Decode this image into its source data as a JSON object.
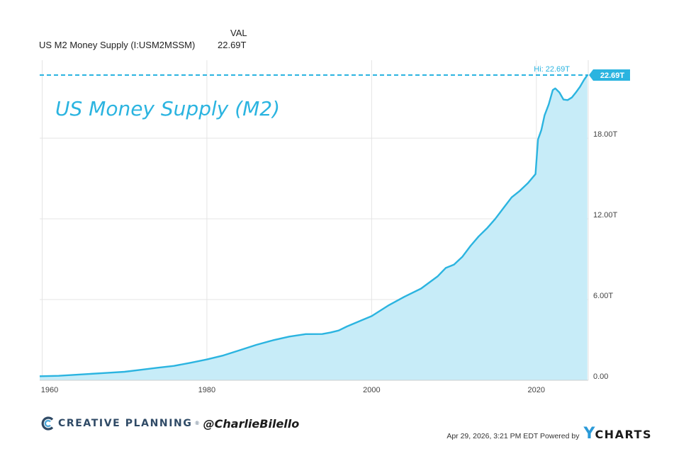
{
  "header": {
    "value_column_label": "VAL",
    "series_label": "US M2 Money Supply (I:USM2MSSM)",
    "series_value": "22.69T"
  },
  "chart_data": {
    "type": "area",
    "title": "US Money Supply (M2)",
    "xlabel": "",
    "ylabel": "",
    "x_ticks": [
      "1960",
      "1980",
      "2000",
      "2020"
    ],
    "y_ticks": [
      "0.00",
      "6.00T",
      "12.00T",
      "18.00T"
    ],
    "xlim": [
      1959.7,
      2026.3
    ],
    "ylim": [
      0,
      22.69
    ],
    "high_label": "Hi: 22.69T",
    "last_value_label": "22.69T",
    "grid": true,
    "series": [
      {
        "x": [
          1959.5,
          1962,
          1965,
          1968,
          1970,
          1972,
          1974,
          1976,
          1978,
          1980,
          1982,
          1984,
          1986,
          1988,
          1990,
          1992,
          1994,
          1995,
          1996,
          1997,
          1998,
          2000,
          2002,
          2004,
          2006,
          2008,
          2009,
          2010,
          2011,
          2012,
          2013,
          2014,
          2015,
          2016,
          2017,
          2018,
          2019,
          2019.9,
          2020.2,
          2020.6,
          2021,
          2021.5,
          2022,
          2022.3,
          2022.8,
          2023.3,
          2023.8,
          2024.3,
          2024.8,
          2025.3,
          2025.8,
          2026.2
        ],
        "values": [
          0.3,
          0.33,
          0.44,
          0.56,
          0.63,
          0.78,
          0.93,
          1.07,
          1.3,
          1.55,
          1.85,
          2.24,
          2.63,
          2.97,
          3.25,
          3.43,
          3.44,
          3.55,
          3.7,
          4.0,
          4.26,
          4.77,
          5.55,
          6.22,
          6.82,
          7.72,
          8.35,
          8.6,
          9.17,
          9.98,
          10.7,
          11.3,
          11.99,
          12.8,
          13.6,
          14.09,
          14.68,
          15.33,
          17.9,
          18.6,
          19.7,
          20.5,
          21.58,
          21.7,
          21.4,
          20.87,
          20.83,
          21.02,
          21.4,
          21.82,
          22.35,
          22.69
        ]
      }
    ]
  },
  "footer": {
    "brand_name": "CREATIVE PLANNING",
    "brand_mark": "®",
    "handle": "@CharlieBilello",
    "timestamp": "Apr 29, 2026, 3:21 PM EDT Powered by",
    "ycharts_y": "Y",
    "ycharts_rest": "CHARTS"
  },
  "colors": {
    "line": "#2bb4e0",
    "fill": "#c7ecf8",
    "grid": "#e4e4e4",
    "tick_text": "#444444",
    "brand": "#2f4a66",
    "ycharts": "#2a9ad8"
  }
}
